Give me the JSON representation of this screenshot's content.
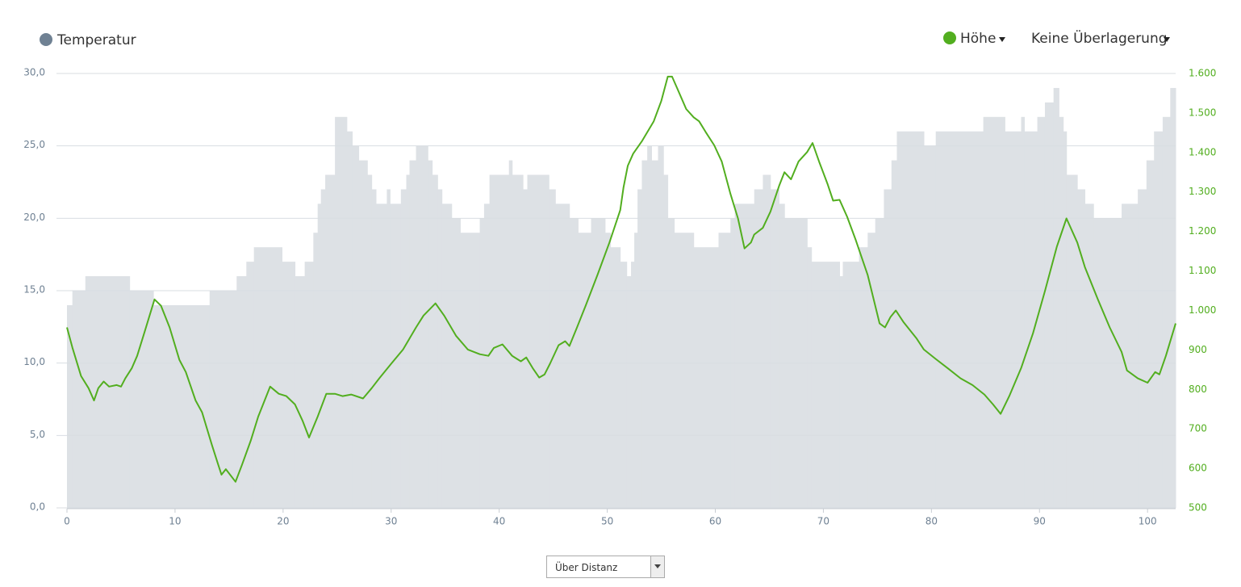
{
  "chart_data": {
    "type": "line",
    "xlim": [
      0,
      102.6
    ],
    "xticks": [
      0,
      10,
      20,
      30,
      40,
      50,
      60,
      70,
      80,
      90,
      100
    ],
    "ylim": [
      0,
      30
    ],
    "yticks": [
      {
        "value": 0,
        "label": "0,0"
      },
      {
        "value": 5,
        "label": "5,0"
      },
      {
        "value": 10,
        "label": "10,0"
      },
      {
        "value": 15,
        "label": "15,0"
      },
      {
        "value": 20,
        "label": "20,0"
      },
      {
        "value": 25,
        "label": "25,0"
      },
      {
        "value": 30,
        "label": "30,0"
      }
    ],
    "y2lim": [
      500,
      1600
    ],
    "y2ticks": [
      500,
      600,
      700,
      800,
      900,
      {
        "value": 1000,
        "label": "1.000"
      },
      {
        "value": 1100,
        "label": "1.100"
      },
      {
        "value": 1200,
        "label": "1.200"
      },
      {
        "value": 1300,
        "label": "1.300"
      },
      {
        "value": 1400,
        "label": "1.400"
      },
      {
        "value": 1500,
        "label": "1.500"
      },
      {
        "value": 1600,
        "label": "1.600"
      }
    ],
    "grid": true,
    "series": [
      {
        "name": "Temperatur",
        "color": "#dde1e5",
        "legend_color": "#6f8193",
        "style": "step-area",
        "x": [
          0,
          0.5,
          1.7,
          5.8,
          8.0,
          13.2,
          15.7,
          16.6,
          17.3,
          19.9,
          21.1,
          22.0,
          22.8,
          23.2,
          23.5,
          23.9,
          24.8,
          25.9,
          26.4,
          27.0,
          27.8,
          28.2,
          28.6,
          29.6,
          29.9,
          30.9,
          31.4,
          31.7,
          32.3,
          33.4,
          33.8,
          34.3,
          34.7,
          35.6,
          36.4,
          38.2,
          38.6,
          39.1,
          40.9,
          41.2,
          42.2,
          42.6,
          44.6,
          45.2,
          46.5,
          47.3,
          48.5,
          49.8,
          50.3,
          51.2,
          51.8,
          52.2,
          52.5,
          52.8,
          53.2,
          53.7,
          54.1,
          54.7,
          55.2,
          55.6,
          56.2,
          58.0,
          60.3,
          61.4,
          61.8,
          63.6,
          64.4,
          65.1,
          65.9,
          66.4,
          68.5,
          68.9,
          71.5,
          71.8,
          73.3,
          74.1,
          74.8,
          75.6,
          76.3,
          76.8,
          79.3,
          80.4,
          84.8,
          86.8,
          88.3,
          88.6,
          89.8,
          90.5,
          91.3,
          91.8,
          92.2,
          92.5,
          93.5,
          94.2,
          95.0,
          97.6,
          99.1,
          99.9,
          100.6,
          101.4,
          102.1
        ],
        "values": [
          14,
          15,
          16,
          15,
          14,
          15,
          16,
          17,
          18,
          17,
          16,
          17,
          19,
          21,
          22,
          23,
          27,
          26,
          25,
          24,
          23,
          22,
          21,
          22,
          21,
          22,
          23,
          24,
          25,
          24,
          23,
          22,
          21,
          20,
          19,
          20,
          21,
          23,
          24,
          23,
          22,
          23,
          22,
          21,
          20,
          19,
          20,
          19,
          18,
          17,
          16,
          17,
          19,
          22,
          24,
          25,
          24,
          25,
          23,
          20,
          19,
          18,
          19,
          20,
          21,
          22,
          23,
          22,
          21,
          20,
          18,
          17,
          16,
          17,
          18,
          19,
          20,
          22,
          24,
          26,
          25,
          26,
          27,
          26,
          27,
          26,
          27,
          28,
          29,
          27,
          26,
          23,
          22,
          21,
          20,
          21,
          22,
          24,
          26,
          27,
          29
        ]
      },
      {
        "name": "Höhe",
        "color": "#52ae1f",
        "axis": "y2",
        "style": "line",
        "x": [
          0,
          0.5,
          1.3,
          2.0,
          2.5,
          2.9,
          3.4,
          3.9,
          4.6,
          5.0,
          5.4,
          6.0,
          6.5,
          7.2,
          8.1,
          8.7,
          9.5,
          10.4,
          11.0,
          11.9,
          12.5,
          13.4,
          14.0,
          14.3,
          14.7,
          15.6,
          16.2,
          17.0,
          17.7,
          18.8,
          19.6,
          20.3,
          21.1,
          21.8,
          22.4,
          23.2,
          24.0,
          24.8,
          25.5,
          26.3,
          27.4,
          28.2,
          28.9,
          30.0,
          31.1,
          32.3,
          33.0,
          34.1,
          34.9,
          36.0,
          37.1,
          38.2,
          39.0,
          39.5,
          40.3,
          41.2,
          42.0,
          42.5,
          43.1,
          43.7,
          44.2,
          44.7,
          45.5,
          46.1,
          46.5,
          47.2,
          48.0,
          49.1,
          50.2,
          51.2,
          51.5,
          51.9,
          52.4,
          53.2,
          54.3,
          55.0,
          55.6,
          56.0,
          56.5,
          57.3,
          58.0,
          58.5,
          59.1,
          59.9,
          60.6,
          61.4,
          62.1,
          62.7,
          63.3,
          63.6,
          64.4,
          65.1,
          65.9,
          66.4,
          67.0,
          67.7,
          68.5,
          69.0,
          69.6,
          70.4,
          70.9,
          71.5,
          72.2,
          73.0,
          74.1,
          75.2,
          75.7,
          76.2,
          76.7,
          77.4,
          78.6,
          79.3,
          80.4,
          81.5,
          82.7,
          83.8,
          84.9,
          85.7,
          86.4,
          87.2,
          88.3,
          89.4,
          90.5,
          91.6,
          92.5,
          93.5,
          94.2,
          95.4,
          96.5,
          97.6,
          98.1,
          99.1,
          100.0,
          100.7,
          101.1,
          101.7,
          102.6
        ],
        "values": [
          957,
          906,
          834,
          803,
          772,
          803,
          820,
          807,
          811,
          807,
          828,
          854,
          885,
          947,
          1028,
          1012,
          957,
          875,
          844,
          772,
          742,
          660,
          609,
          584,
          598,
          566,
          609,
          670,
          731,
          807,
          789,
          783,
          762,
          721,
          678,
          731,
          789,
          789,
          783,
          787,
          777,
          803,
          828,
          865,
          901,
          957,
          987,
          1018,
          987,
          936,
          901,
          889,
          885,
          905,
          914,
          885,
          871,
          881,
          854,
          830,
          838,
          865,
          912,
          922,
          910,
          957,
          1012,
          1090,
          1172,
          1254,
          1311,
          1366,
          1397,
          1428,
          1479,
          1530,
          1592,
          1592,
          1561,
          1510,
          1489,
          1479,
          1452,
          1418,
          1377,
          1295,
          1233,
          1157,
          1172,
          1192,
          1209,
          1250,
          1315,
          1350,
          1332,
          1377,
          1401,
          1424,
          1377,
          1319,
          1278,
          1280,
          1237,
          1178,
          1090,
          967,
          957,
          983,
          1000,
          971,
          930,
          901,
          877,
          854,
          828,
          811,
          787,
          762,
          738,
          783,
          854,
          942,
          1049,
          1161,
          1233,
          1172,
          1110,
          1028,
          957,
          895,
          848,
          828,
          817,
          844,
          838,
          885,
          967
        ]
      }
    ]
  },
  "controls": {
    "overlay": "Keine Überlagerung",
    "x_mode": "Über Distanz"
  }
}
